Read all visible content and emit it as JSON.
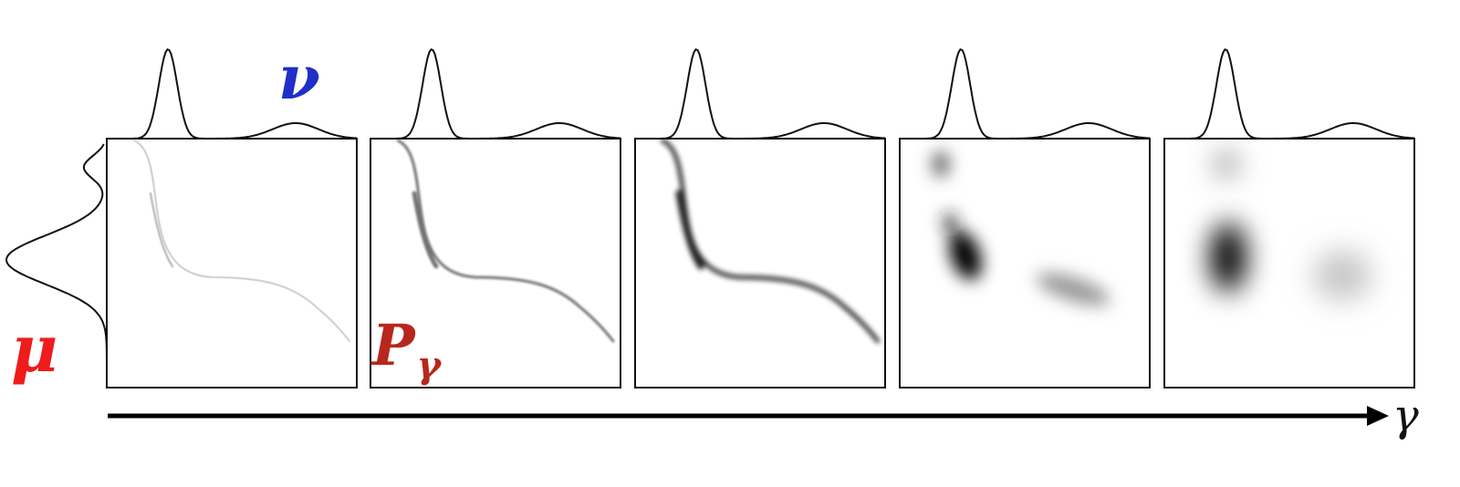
{
  "labels": {
    "nu": "ν",
    "mu": "μ",
    "p_main": "P",
    "p_sub": "γ",
    "axis": "γ"
  },
  "colors": {
    "nu": "#1f2fc7",
    "mu": "#ee1c1c",
    "p": "#b8271b",
    "ink": "#111111"
  },
  "panels": [
    {
      "gamma_index": 1,
      "blur": 0.6,
      "darkness": 0.25
    },
    {
      "gamma_index": 2,
      "blur": 1.4,
      "darkness": 0.55
    },
    {
      "gamma_index": 3,
      "blur": 2.8,
      "darkness": 0.85
    },
    {
      "gamma_index": 4,
      "blur": 9,
      "darkness": 1.0
    },
    {
      "gamma_index": 5,
      "blur": 15,
      "darkness": 1.0
    }
  ]
}
